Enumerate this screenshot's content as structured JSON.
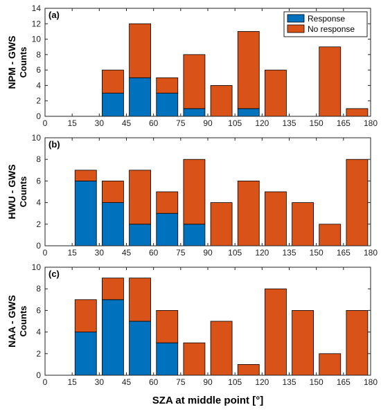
{
  "colors": {
    "response": "#0072BD",
    "no_response": "#D95319"
  },
  "xlabel": "SZA at middle point [°]",
  "legend": [
    "Response",
    "No response"
  ],
  "chart_data": [
    {
      "type": "bar",
      "stacked": true,
      "panel_label": "(a)",
      "ylabel": "NPM - GWS",
      "ylabel_sub": "Counts",
      "xlim": [
        0,
        180
      ],
      "ylim": [
        0,
        14
      ],
      "xticks": [
        0,
        15,
        30,
        45,
        60,
        75,
        90,
        105,
        120,
        135,
        150,
        165,
        180
      ],
      "yticks": [
        0,
        2,
        4,
        6,
        8,
        10,
        12,
        14
      ],
      "x": [
        7.5,
        22.5,
        37.5,
        52.5,
        67.5,
        82.5,
        97.5,
        112.5,
        127.5,
        142.5,
        157.5,
        172.5
      ],
      "series": [
        {
          "name": "Response",
          "values": [
            0,
            0,
            3,
            5,
            3,
            1,
            0,
            1,
            0,
            0,
            0,
            0
          ]
        },
        {
          "name": "No response",
          "values": [
            0,
            0,
            3,
            7,
            2,
            7,
            4,
            10,
            6,
            0,
            9,
            1
          ]
        }
      ],
      "legend_position": "top-right"
    },
    {
      "type": "bar",
      "stacked": true,
      "panel_label": "(b)",
      "ylabel": "HWU - GWS",
      "ylabel_sub": "Counts",
      "xlim": [
        0,
        180
      ],
      "ylim": [
        0,
        10
      ],
      "xticks": [
        0,
        15,
        30,
        45,
        60,
        75,
        90,
        105,
        120,
        135,
        150,
        165,
        180
      ],
      "yticks": [
        0,
        2,
        4,
        6,
        8,
        10
      ],
      "x": [
        7.5,
        22.5,
        37.5,
        52.5,
        67.5,
        82.5,
        97.5,
        112.5,
        127.5,
        142.5,
        157.5,
        172.5
      ],
      "series": [
        {
          "name": "Response",
          "values": [
            0,
            6,
            4,
            2,
            3,
            2,
            0,
            0,
            0,
            0,
            0,
            0
          ]
        },
        {
          "name": "No response",
          "values": [
            0,
            1,
            2,
            5,
            2,
            6,
            4,
            6,
            5,
            4,
            2,
            8
          ]
        }
      ]
    },
    {
      "type": "bar",
      "stacked": true,
      "panel_label": "(c)",
      "ylabel": "NAA - GWS",
      "ylabel_sub": "Counts",
      "xlim": [
        0,
        180
      ],
      "ylim": [
        0,
        10
      ],
      "xticks": [
        0,
        15,
        30,
        45,
        60,
        75,
        90,
        105,
        120,
        135,
        150,
        165,
        180
      ],
      "yticks": [
        0,
        2,
        4,
        6,
        8,
        10
      ],
      "x": [
        7.5,
        22.5,
        37.5,
        52.5,
        67.5,
        82.5,
        97.5,
        112.5,
        127.5,
        142.5,
        157.5,
        172.5
      ],
      "series": [
        {
          "name": "Response",
          "values": [
            0,
            4,
            7,
            5,
            3,
            0,
            0,
            0,
            0,
            0,
            0,
            0
          ]
        },
        {
          "name": "No response",
          "values": [
            0,
            3,
            2,
            4,
            3,
            3,
            5,
            1,
            8,
            6,
            2,
            6
          ]
        }
      ]
    }
  ]
}
